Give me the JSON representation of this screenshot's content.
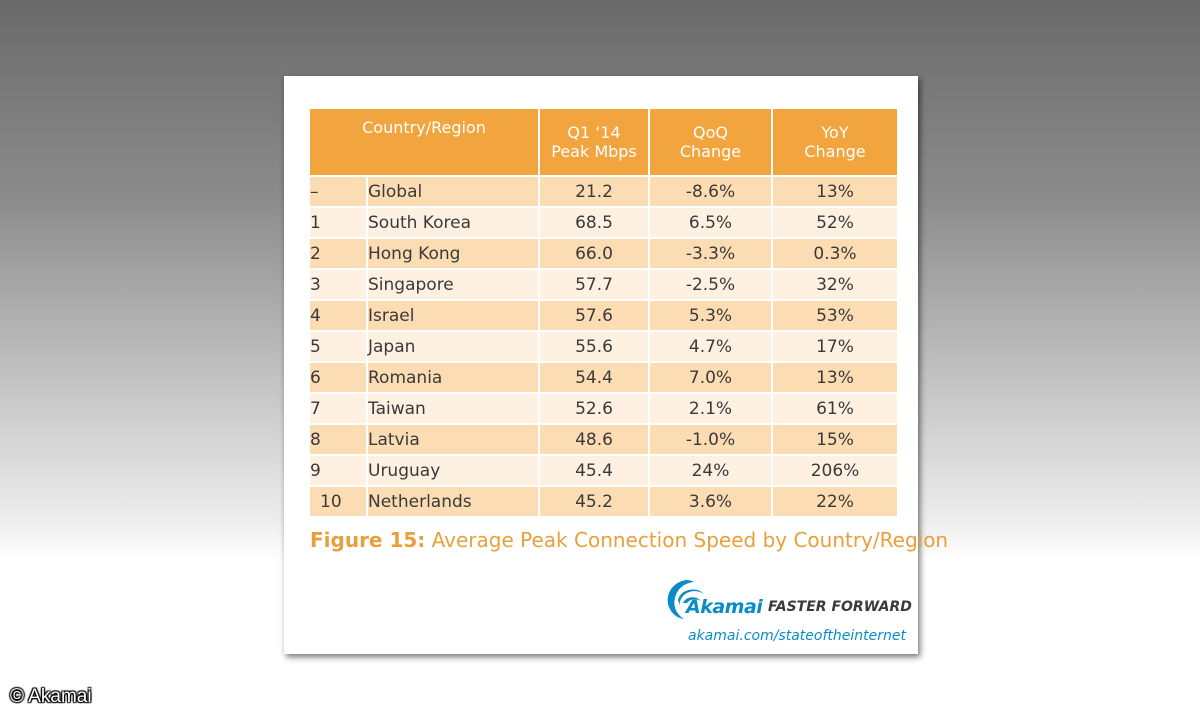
{
  "table": {
    "headers": {
      "country": "Country/Region",
      "peak_line1": "Q1 ‘14",
      "peak_line2": "Peak Mbps",
      "qoq_line1": "QoQ",
      "qoq_line2": "Change",
      "yoy_line1": "YoY",
      "yoy_line2": "Change"
    },
    "rows": [
      {
        "rank": "–",
        "country": "Global",
        "peak": "21.2",
        "qoq": "-8.6%",
        "yoy": "13%"
      },
      {
        "rank": "1",
        "country": "South Korea",
        "peak": "68.5",
        "qoq": "6.5%",
        "yoy": "52%"
      },
      {
        "rank": "2",
        "country": "Hong Kong",
        "peak": "66.0",
        "qoq": "-3.3%",
        "yoy": "0.3%"
      },
      {
        "rank": "3",
        "country": "Singapore",
        "peak": "57.7",
        "qoq": "-2.5%",
        "yoy": "32%"
      },
      {
        "rank": "4",
        "country": "Israel",
        "peak": "57.6",
        "qoq": "5.3%",
        "yoy": "53%"
      },
      {
        "rank": "5",
        "country": "Japan",
        "peak": "55.6",
        "qoq": "4.7%",
        "yoy": "17%"
      },
      {
        "rank": "6",
        "country": "Romania",
        "peak": "54.4",
        "qoq": "7.0%",
        "yoy": "13%"
      },
      {
        "rank": "7",
        "country": "Taiwan",
        "peak": "52.6",
        "qoq": "2.1%",
        "yoy": "61%"
      },
      {
        "rank": "8",
        "country": "Latvia",
        "peak": "48.6",
        "qoq": "-1.0%",
        "yoy": "15%"
      },
      {
        "rank": "9",
        "country": "Uruguay",
        "peak": "45.4",
        "qoq": "24%",
        "yoy": "206%"
      },
      {
        "rank": "10",
        "country": "Netherlands",
        "peak": "45.2",
        "qoq": "3.6%",
        "yoy": "22%"
      }
    ]
  },
  "caption": {
    "label": "Figure 15:",
    "text": " Average Peak Connection Speed by Country/Region"
  },
  "logo": {
    "brand": "Akamai",
    "tagline": "FASTER FORWARD",
    "url": "akamai.com/stateoftheinternet"
  },
  "copyright": "© Akamai",
  "colors": {
    "header_orange": "#f2a43e",
    "row_dark": "#fcdcb3",
    "row_light": "#fef1e2",
    "caption_orange": "#e8a03c",
    "akamai_blue": "#0a8dc7"
  }
}
